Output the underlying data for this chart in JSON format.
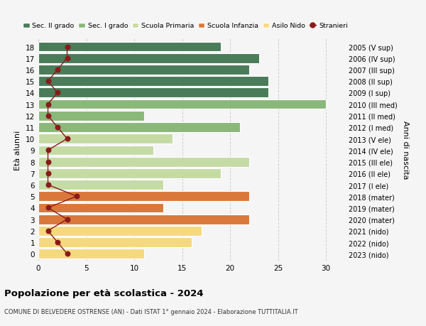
{
  "ages": [
    18,
    17,
    16,
    15,
    14,
    13,
    12,
    11,
    10,
    9,
    8,
    7,
    6,
    5,
    4,
    3,
    2,
    1,
    0
  ],
  "right_labels": [
    "2005 (V sup)",
    "2006 (IV sup)",
    "2007 (III sup)",
    "2008 (II sup)",
    "2009 (I sup)",
    "2010 (III med)",
    "2011 (II med)",
    "2012 (I med)",
    "2013 (V ele)",
    "2014 (IV ele)",
    "2015 (III ele)",
    "2016 (II ele)",
    "2017 (I ele)",
    "2018 (mater)",
    "2019 (mater)",
    "2020 (mater)",
    "2021 (nido)",
    "2022 (nido)",
    "2023 (nido)"
  ],
  "bar_values": [
    19,
    23,
    22,
    24,
    24,
    30,
    11,
    21,
    14,
    12,
    22,
    19,
    13,
    22,
    13,
    22,
    17,
    16,
    11
  ],
  "bar_colors": [
    "#4a7c59",
    "#4a7c59",
    "#4a7c59",
    "#4a7c59",
    "#4a7c59",
    "#8ab87a",
    "#8ab87a",
    "#8ab87a",
    "#c5dba4",
    "#c5dba4",
    "#c5dba4",
    "#c5dba4",
    "#c5dba4",
    "#d9783a",
    "#d9783a",
    "#d9783a",
    "#f5d97e",
    "#f5d97e",
    "#f5d97e"
  ],
  "stranieri_values": [
    3,
    3,
    2,
    1,
    2,
    1,
    1,
    2,
    3,
    1,
    1,
    1,
    1,
    4,
    1,
    3,
    1,
    2,
    3
  ],
  "stranieri_color": "#8b1a1a",
  "title": "Popolazione per età scolastica - 2024",
  "subtitle": "COMUNE DI BELVEDERE OSTRENSE (AN) - Dati ISTAT 1° gennaio 2024 - Elaborazione TUTTITALIA.IT",
  "ylabel": "Età alunni",
  "ylabel_right": "Anni di nascita",
  "xlim": [
    0,
    32
  ],
  "xticks": [
    0,
    5,
    10,
    15,
    20,
    25,
    30
  ],
  "legend_labels": [
    "Sec. II grado",
    "Sec. I grado",
    "Scuola Primaria",
    "Scuola Infanzia",
    "Asilo Nido",
    "Stranieri"
  ],
  "legend_colors": [
    "#4a7c59",
    "#8ab87a",
    "#c5dba4",
    "#d9783a",
    "#f5d97e",
    "#8b1a1a"
  ],
  "bar_height": 0.85,
  "bg_color": "#f5f5f5"
}
